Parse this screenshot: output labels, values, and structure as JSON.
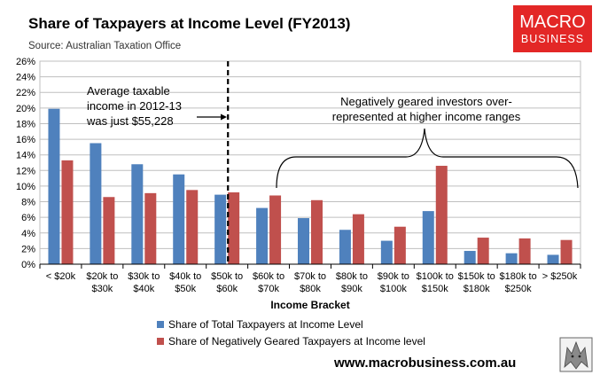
{
  "chart_data": {
    "type": "bar",
    "title": "Share of Taxpayers at Income Level (FY2013)",
    "subtitle": "Source: Australian Taxation Office",
    "xlabel": "Income Bracket",
    "ylabel": "",
    "ylim": [
      0,
      26
    ],
    "y_ticks": [
      0,
      2,
      4,
      6,
      8,
      10,
      12,
      14,
      16,
      18,
      20,
      22,
      24,
      26
    ],
    "y_tick_format": "%",
    "grid": true,
    "legend_position": "bottom-left",
    "categories": [
      [
        "< $20k"
      ],
      [
        "$20k to",
        "$30k"
      ],
      [
        "$30k to",
        "$40k"
      ],
      [
        "$40k to",
        "$50k"
      ],
      [
        "$50k to",
        "$60k"
      ],
      [
        "$60k to",
        "$70k"
      ],
      [
        "$70k to",
        "$80k"
      ],
      [
        "$80k to",
        "$90k"
      ],
      [
        "$90k to",
        "$100k"
      ],
      [
        "$100k to",
        "$150k"
      ],
      [
        "$150k to",
        "$180k"
      ],
      [
        "$180k to",
        "$250k"
      ],
      [
        "> $250k"
      ]
    ],
    "series": [
      {
        "name": "Share of Total Taxpayers at Income Level",
        "color": "#4f81bd",
        "values": [
          19.9,
          15.5,
          12.8,
          11.5,
          8.9,
          7.2,
          5.9,
          4.4,
          3.0,
          6.8,
          1.7,
          1.4,
          1.2
        ]
      },
      {
        "name": "Share of Negatively Geared Taxpayers at Income level",
        "color": "#c0504d",
        "values": [
          13.3,
          8.6,
          9.1,
          9.5,
          9.2,
          8.8,
          8.2,
          6.4,
          4.8,
          12.6,
          3.4,
          3.3,
          3.1
        ]
      }
    ],
    "annotations": {
      "average_income": [
        "Average taxable",
        "income in 2012-13",
        "was just $55,228"
      ],
      "average_income_value": 55228,
      "negatively_geared": [
        "Negatively geared investors over-",
        "represented at higher income ranges"
      ]
    }
  },
  "branding": {
    "logo_line1": "MACRO",
    "logo_line2": "BUSINESS",
    "logo_color": "#e32726",
    "url": "www.macrobusiness.com.au"
  }
}
